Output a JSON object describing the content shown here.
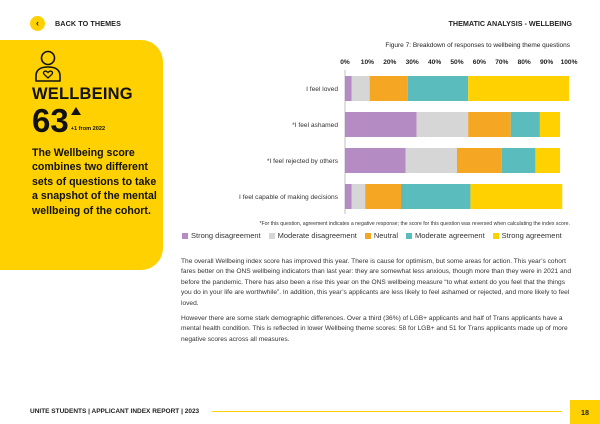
{
  "nav": {
    "back_icon": "chevron-left-icon",
    "back_label": "BACK TO THEMES",
    "section": "THEMATIC ANALYSIS  - WELLBEING"
  },
  "panel": {
    "icon": "person-heart-icon",
    "title": "WELLBEING",
    "score": "63",
    "change": "+1 from 2022",
    "description": "The Wellbeing score combines two different sets of questions to take a snapshot of the mental wellbeing of the cohort.",
    "color": "#ffd100"
  },
  "chart_data": {
    "type": "bar",
    "orientation": "horizontal",
    "stacked": true,
    "title": "Figure 7: Breakdown of responses to wellbeing theme questions",
    "x_ticks": [
      "0%",
      "10%",
      "20%",
      "30%",
      "40%",
      "50%",
      "60%",
      "70%",
      "80%",
      "90%",
      "100%"
    ],
    "xlim": [
      0,
      100
    ],
    "categories": [
      "I feel loved",
      "*I feel ashamed",
      "*I feel rejected by others",
      "I feel capable of making decisions"
    ],
    "series": [
      {
        "name": "Strong disagreement",
        "color": "#b58bc4",
        "values": [
          3,
          32,
          27,
          3
        ]
      },
      {
        "name": "Moderate disagreement",
        "color": "#d6d6d6",
        "values": [
          8,
          23,
          23,
          6
        ]
      },
      {
        "name": "Neutral",
        "color": "#f5a623",
        "values": [
          17,
          19,
          20,
          16
        ]
      },
      {
        "name": "Moderate agreement",
        "color": "#5bbcbe",
        "values": [
          27,
          13,
          15,
          31
        ]
      },
      {
        "name": "Strong agreement",
        "color": "#ffd100",
        "values": [
          45,
          9,
          11,
          41
        ]
      }
    ],
    "note": "*For this question, agreement indicates a negative response; the score for this question was reversed when calculating the index score.",
    "legend_position": "bottom",
    "grid": false
  },
  "body": {
    "paragraphs": [
      "The overall Wellbeing index score has improved this year. There is cause for optimism, but some areas for action. This year’s cohort fares better on the ONS wellbeing indicators than last year: they are somewhat less anxious, though more than they were in 2021 and before the pandemic. There has also been a rise this year on the ONS wellbeing measure “to what extent do you feel that the things you do in your life are worthwhile”. In addition, this year’s applicants are less likely to feel ashamed or rejected, and more likely to feel loved.",
      "However there are some stark demographic differences. Over a third (36%) of LGB+ applicants and half of Trans applicants have a mental health condition. This is reflected in lower Wellbeing theme scores: 58 for LGB+ and 51 for Trans applicants made up of more negative scores across all measures."
    ]
  },
  "footer": {
    "report": "UNITE STUDENTS | APPLICANT INDEX REPORT | 2023",
    "page": "18"
  }
}
